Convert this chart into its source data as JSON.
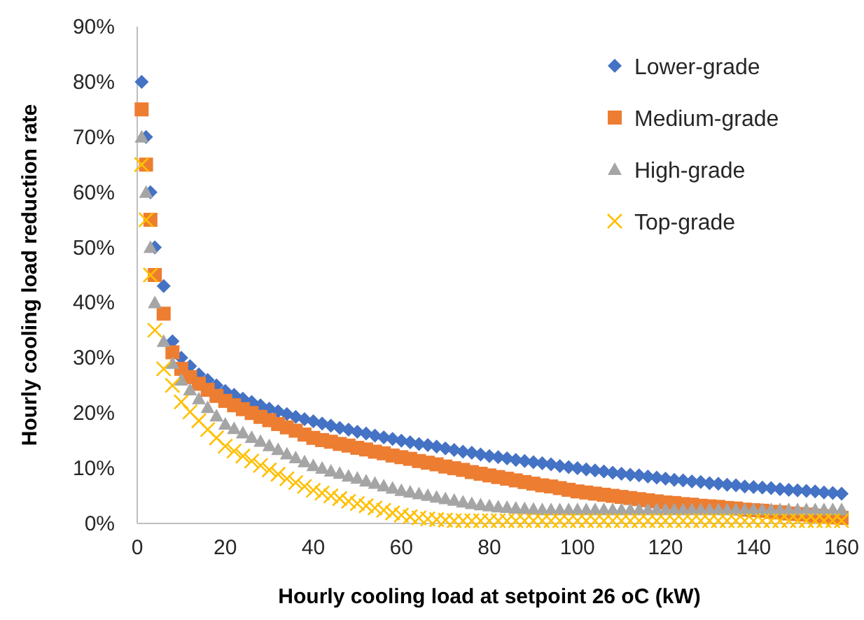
{
  "chart_data": {
    "type": "scatter",
    "xlabel": "Hourly cooling load at setpoint 26 oC (kW)",
    "ylabel": "Hourly cooling load reduction rate",
    "x": [
      1,
      2,
      3,
      4,
      6,
      8,
      10,
      12,
      14,
      16,
      18,
      20,
      22,
      24,
      26,
      28,
      30,
      32,
      34,
      36,
      38,
      40,
      42,
      44,
      46,
      48,
      50,
      52,
      54,
      56,
      58,
      60,
      62,
      64,
      66,
      68,
      70,
      72,
      74,
      76,
      78,
      80,
      82,
      84,
      86,
      88,
      90,
      92,
      94,
      96,
      98,
      100,
      102,
      104,
      106,
      108,
      110,
      112,
      114,
      116,
      118,
      120,
      122,
      124,
      126,
      128,
      130,
      132,
      134,
      136,
      138,
      140,
      142,
      144,
      146,
      148,
      150,
      152,
      154,
      156,
      158,
      160
    ],
    "series": [
      {
        "name": "Lower-grade",
        "color": "#4472c4",
        "marker": "diamond",
        "values": [
          80,
          70,
          60,
          50,
          43,
          33,
          30,
          28.5,
          27,
          26,
          25,
          24,
          23.3,
          22.6,
          22,
          21.4,
          20.8,
          20.3,
          19.8,
          19.3,
          18.9,
          18.5,
          18.1,
          17.7,
          17.3,
          17,
          16.6,
          16.3,
          15.9,
          15.6,
          15.3,
          15,
          14.7,
          14.4,
          14.2,
          13.9,
          13.6,
          13.3,
          13,
          12.8,
          12.5,
          12.2,
          12,
          11.8,
          11.5,
          11.3,
          11.1,
          10.9,
          10.7,
          10.4,
          10.2,
          10,
          9.8,
          9.6,
          9.4,
          9.2,
          9,
          8.8,
          8.7,
          8.5,
          8.3,
          8.1,
          7.9,
          7.8,
          7.6,
          7.5,
          7.3,
          7.2,
          7,
          6.9,
          6.7,
          6.6,
          6.5,
          6.4,
          6.2,
          6.1,
          6,
          5.9,
          5.8,
          5.6,
          5.5,
          5.4
        ]
      },
      {
        "name": "Medium-grade",
        "color": "#ed7d31",
        "marker": "square",
        "values": [
          75,
          65,
          55,
          45,
          38,
          31,
          28,
          26.5,
          25.3,
          24.2,
          23.1,
          22.2,
          21.4,
          20.7,
          20,
          19.3,
          18.7,
          18,
          17.4,
          16.8,
          16.1,
          15.5,
          15.1,
          14.8,
          14.4,
          14.1,
          13.7,
          13.4,
          13,
          12.7,
          12.3,
          12,
          11.7,
          11.3,
          11,
          10.7,
          10.3,
          10,
          9.7,
          9.3,
          9,
          8.7,
          8.4,
          8.1,
          7.8,
          7.5,
          7.2,
          6.9,
          6.7,
          6.4,
          6.1,
          5.8,
          5.6,
          5.4,
          5.2,
          5,
          4.8,
          4.6,
          4.4,
          4.2,
          4,
          3.8,
          3.7,
          3.5,
          3.4,
          3.2,
          3.1,
          3,
          2.8,
          2.7,
          2.5,
          2.4,
          2.3,
          2.1,
          2,
          1.8,
          1.7,
          1.6,
          1.4,
          1.3,
          1.1,
          1
        ]
      },
      {
        "name": "High-grade",
        "color": "#a5a5a5",
        "marker": "triangle",
        "values": [
          70,
          60,
          50,
          40,
          33,
          29,
          26,
          24.2,
          22.6,
          21,
          19.5,
          18,
          17.2,
          16.4,
          15.6,
          14.9,
          14.1,
          13.4,
          12.6,
          11.9,
          11.2,
          10.5,
          10,
          9.5,
          9.1,
          8.6,
          8.2,
          7.7,
          7.3,
          6.8,
          6.4,
          6,
          5.7,
          5.4,
          5.1,
          4.8,
          4.5,
          4.2,
          3.9,
          3.6,
          3.4,
          3.2,
          3,
          2.9,
          2.8,
          2.7,
          2.6,
          2.5,
          2.5,
          2.5,
          2.5,
          2.5,
          2.5,
          2.5,
          2.5,
          2.5,
          2.5,
          2.5,
          2.5,
          2.5,
          2.5,
          2.5,
          2.5,
          2.5,
          2.5,
          2.5,
          2.5,
          2.5,
          2.5,
          2.5,
          2.5,
          2.5,
          2.5,
          2.5,
          2.5,
          2.5,
          2.5,
          2.5,
          2.5,
          2.5,
          2.5,
          2.5
        ]
      },
      {
        "name": "Top-grade",
        "color": "#ffc000",
        "marker": "cross",
        "values": [
          65,
          55,
          45,
          35,
          28,
          25,
          22,
          20.2,
          18.6,
          17,
          15.5,
          14,
          13.1,
          12.2,
          11.3,
          10.5,
          9.7,
          8.9,
          8.1,
          7.4,
          6.7,
          6,
          5.5,
          5,
          4.5,
          4,
          3.6,
          3.2,
          2.8,
          2.4,
          1.9,
          1.5,
          1.2,
          1,
          0.8,
          0.7,
          0.6,
          0.5,
          0.5,
          0.5,
          0.5,
          0.5,
          0.5,
          0.5,
          0.5,
          0.5,
          0.5,
          0.5,
          0.5,
          0.5,
          0.5,
          0.5,
          0.5,
          0.5,
          0.5,
          0.5,
          0.5,
          0.5,
          0.5,
          0.5,
          0.5,
          0.5,
          0.5,
          0.5,
          0.5,
          0.5,
          0.5,
          0.5,
          0.5,
          0.5,
          0.5,
          0.5,
          0.5,
          0.5,
          0.5,
          0.5,
          0.5,
          0.5,
          0.5,
          0.5,
          0.5,
          0.5
        ]
      }
    ],
    "xlim": [
      0,
      160
    ],
    "xticks": [
      0,
      20,
      40,
      60,
      80,
      100,
      120,
      140,
      160
    ],
    "ylim": [
      0,
      90
    ],
    "yticks": [
      {
        "value": 0,
        "label": "0%"
      },
      {
        "value": 10,
        "label": "10%"
      },
      {
        "value": 20,
        "label": "20%"
      },
      {
        "value": 30,
        "label": "30%"
      },
      {
        "value": 40,
        "label": "40%"
      },
      {
        "value": 50,
        "label": "50%"
      },
      {
        "value": 60,
        "label": "60%"
      },
      {
        "value": 70,
        "label": "70%"
      },
      {
        "value": 80,
        "label": "80%"
      },
      {
        "value": 90,
        "label": "90%"
      }
    ],
    "grid": false,
    "legend": "top right"
  }
}
